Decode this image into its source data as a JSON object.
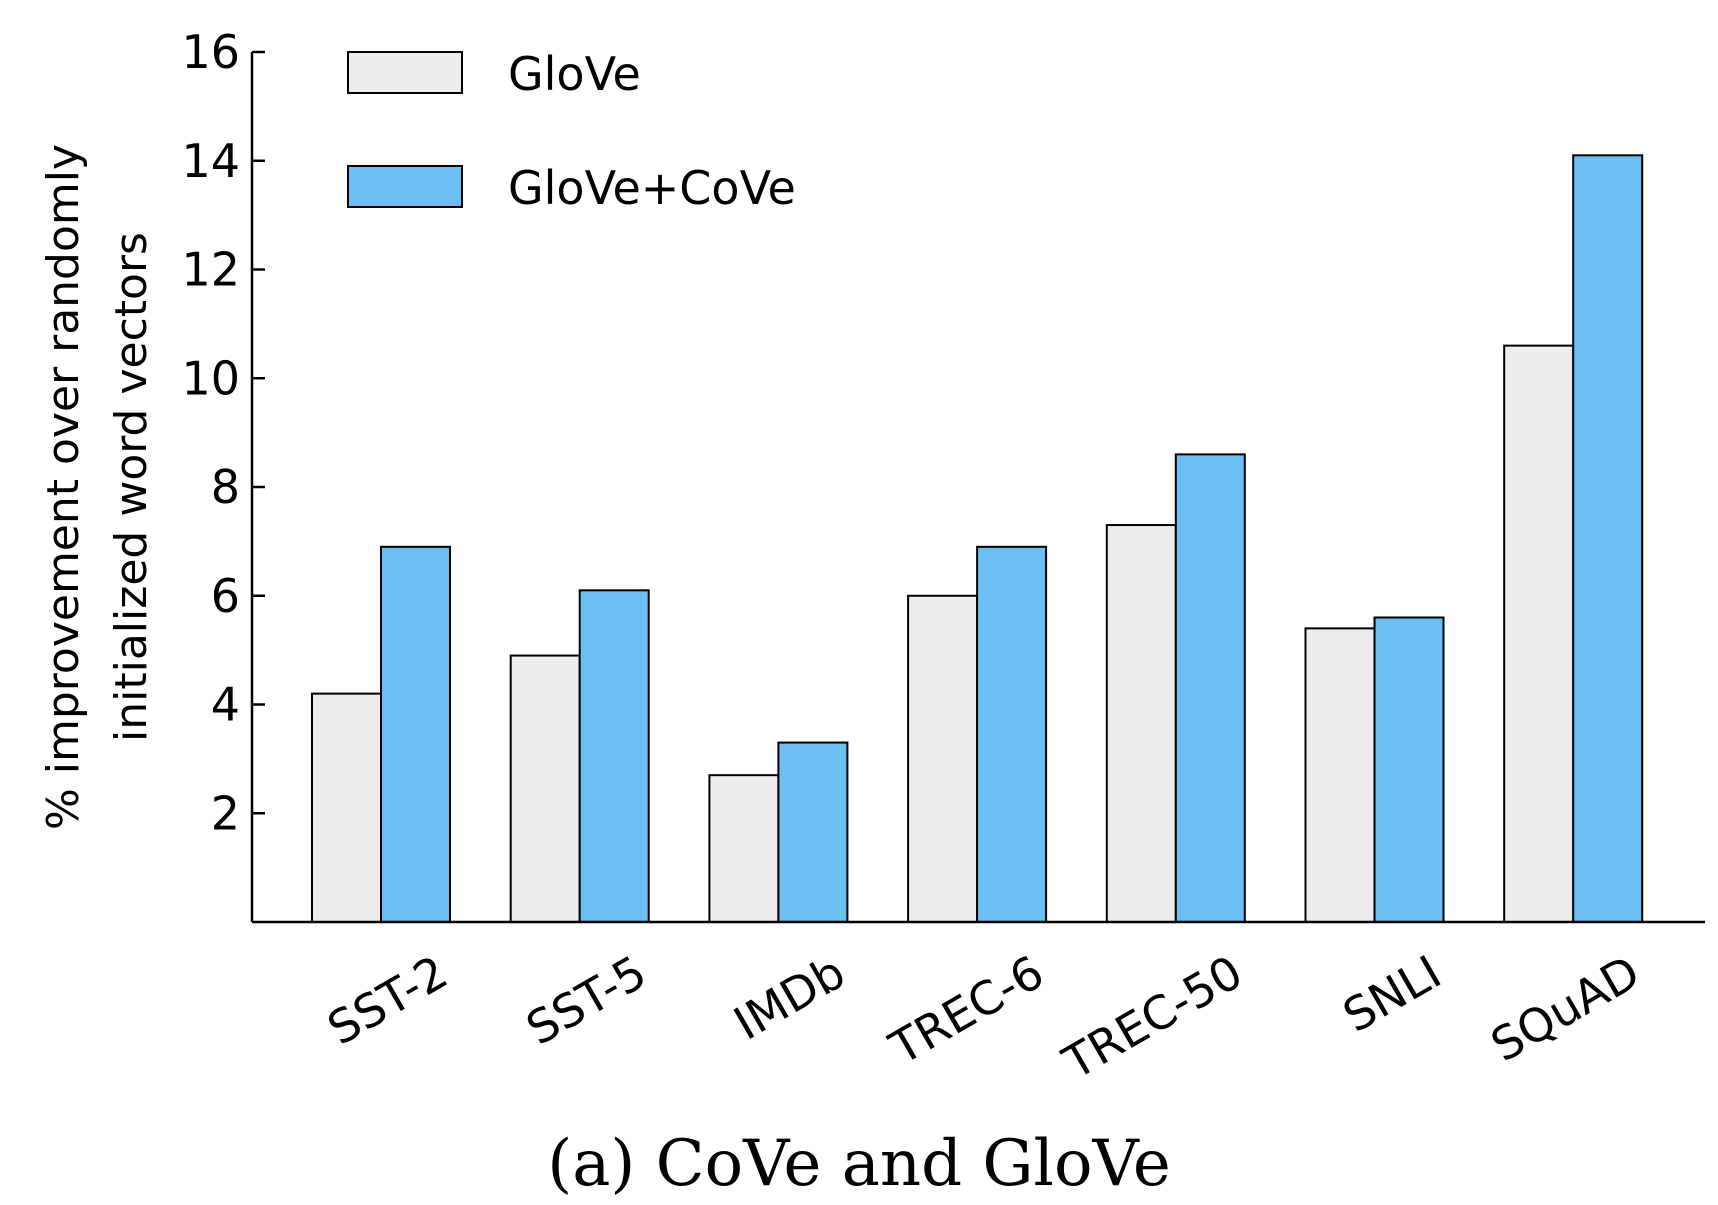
{
  "chart_data": {
    "type": "bar",
    "ylabel_lines": [
      "% improvement over randomly",
      "initialized word vectors"
    ],
    "caption": "(a) CoVe and GloVe",
    "categories": [
      "SST-2",
      "SST-5",
      "IMDb",
      "TREC-6",
      "TREC-50",
      "SNLI",
      "SQuAD"
    ],
    "ylim": [
      0,
      16
    ],
    "yticks": [
      "2",
      "4",
      "6",
      "8",
      "10",
      "12",
      "14",
      "16"
    ],
    "grid": false,
    "legend_position": "top-left",
    "series": [
      {
        "name": "GloVe",
        "color": "#ededee",
        "values": [
          4.2,
          4.9,
          2.7,
          6.0,
          7.3,
          5.4,
          10.6
        ]
      },
      {
        "name": "GloVe+CoVe",
        "color": "#6cbff2",
        "values": [
          6.9,
          6.1,
          3.3,
          6.9,
          8.6,
          5.6,
          14.1
        ]
      }
    ]
  }
}
